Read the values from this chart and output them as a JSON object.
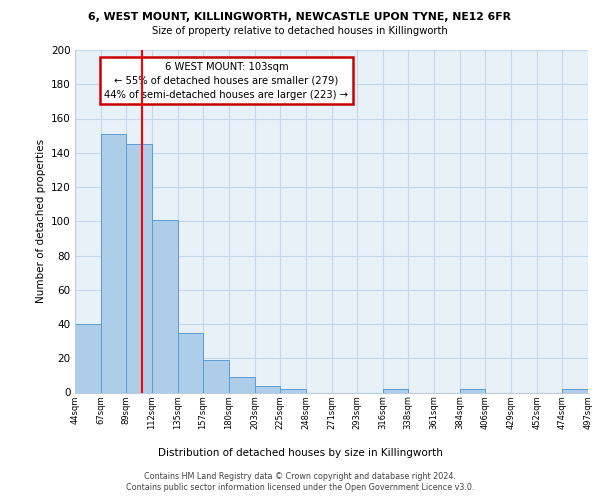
{
  "title_line1": "6, WEST MOUNT, KILLINGWORTH, NEWCASTLE UPON TYNE, NE12 6FR",
  "title_line2": "Size of property relative to detached houses in Killingworth",
  "xlabel": "Distribution of detached houses by size in Killingworth",
  "ylabel": "Number of detached properties",
  "bar_edges": [
    44,
    67,
    89,
    112,
    135,
    157,
    180,
    203,
    225,
    248,
    271,
    293,
    316,
    338,
    361,
    384,
    406,
    429,
    452,
    474,
    497
  ],
  "bar_heights": [
    40,
    151,
    145,
    101,
    35,
    19,
    9,
    4,
    2,
    0,
    0,
    0,
    2,
    0,
    0,
    2,
    0,
    0,
    0,
    2
  ],
  "bar_color": "#aecde8",
  "bar_edge_color": "#5b9bd5",
  "grid_color": "#c5d8eb",
  "bg_color": "#e8f0f8",
  "red_line_x": 103,
  "annotation_title": "6 WEST MOUNT: 103sqm",
  "annotation_line1": "← 55% of detached houses are smaller (279)",
  "annotation_line2": "44% of semi-detached houses are larger (223) →",
  "annotation_box_color": "#ffffff",
  "annotation_box_edge_color": "#cc0000",
  "ylim": [
    0,
    200
  ],
  "yticks": [
    0,
    20,
    40,
    60,
    80,
    100,
    120,
    140,
    160,
    180,
    200
  ],
  "footnote1": "Contains HM Land Registry data © Crown copyright and database right 2024.",
  "footnote2": "Contains public sector information licensed under the Open Government Licence v3.0."
}
